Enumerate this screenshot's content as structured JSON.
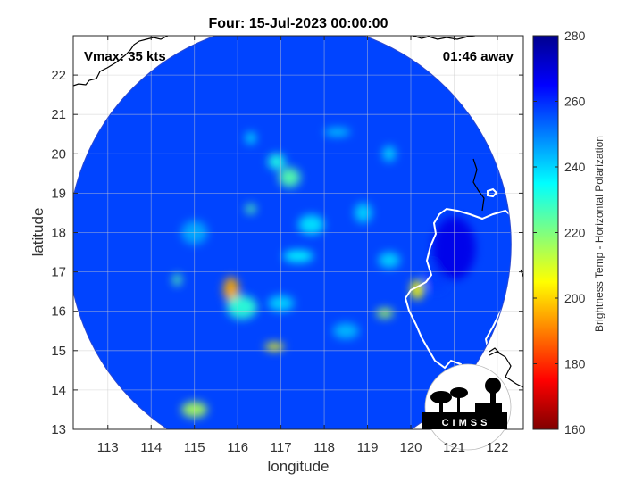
{
  "chart_data": {
    "type": "heatmap",
    "title": "Four: 15-Jul-2023 00:00:00",
    "xlabel": "longitude",
    "ylabel": "latitude",
    "xlim": [
      112.2,
      122.6
    ],
    "ylim": [
      13,
      23
    ],
    "xticks": [
      "113",
      "114",
      "115",
      "116",
      "117",
      "118",
      "119",
      "120",
      "121",
      "122"
    ],
    "yticks": [
      "13",
      "14",
      "15",
      "16",
      "17",
      "18",
      "19",
      "20",
      "21",
      "22"
    ],
    "grid": true,
    "annotations": {
      "left": "Vmax: 35 kts",
      "right": "01:46 away"
    },
    "colorbar": {
      "label": "Brightness Temp - Horizontal Polarization",
      "range": [
        160,
        280
      ],
      "ticks": [
        "160",
        "180",
        "200",
        "220",
        "240",
        "260",
        "280"
      ],
      "colormap": "jet"
    },
    "swath": {
      "center_lon": 117.2,
      "center_lat": 17.7,
      "background_value": 257
    },
    "features": [
      {
        "lon": 115.85,
        "lat": 16.55,
        "value": 195,
        "rx": 0.18,
        "ry": 0.32
      },
      {
        "lon": 116.1,
        "lat": 16.1,
        "value": 230,
        "rx": 0.35,
        "ry": 0.3
      },
      {
        "lon": 120.15,
        "lat": 16.55,
        "value": 205,
        "rx": 0.15,
        "ry": 0.25
      },
      {
        "lon": 119.4,
        "lat": 15.95,
        "value": 215,
        "rx": 0.2,
        "ry": 0.12
      },
      {
        "lon": 116.85,
        "lat": 15.1,
        "value": 205,
        "rx": 0.22,
        "ry": 0.1
      },
      {
        "lon": 115.0,
        "lat": 13.5,
        "value": 215,
        "rx": 0.3,
        "ry": 0.2
      },
      {
        "lon": 116.3,
        "lat": 18.6,
        "value": 225,
        "rx": 0.12,
        "ry": 0.12
      },
      {
        "lon": 117.2,
        "lat": 19.4,
        "value": 225,
        "rx": 0.25,
        "ry": 0.25
      },
      {
        "lon": 116.9,
        "lat": 19.8,
        "value": 232,
        "rx": 0.2,
        "ry": 0.2
      },
      {
        "lon": 114.6,
        "lat": 16.8,
        "value": 225,
        "rx": 0.1,
        "ry": 0.15
      },
      {
        "lon": 117.7,
        "lat": 18.2,
        "value": 238,
        "rx": 0.3,
        "ry": 0.25
      },
      {
        "lon": 119.5,
        "lat": 17.3,
        "value": 240,
        "rx": 0.25,
        "ry": 0.2
      },
      {
        "lon": 118.9,
        "lat": 18.5,
        "value": 240,
        "rx": 0.2,
        "ry": 0.25
      },
      {
        "lon": 116.3,
        "lat": 20.4,
        "value": 238,
        "rx": 0.12,
        "ry": 0.15
      },
      {
        "lon": 118.3,
        "lat": 20.55,
        "value": 240,
        "rx": 0.3,
        "ry": 0.1
      },
      {
        "lon": 119.5,
        "lat": 20.0,
        "value": 240,
        "rx": 0.15,
        "ry": 0.2
      },
      {
        "lon": 117.4,
        "lat": 17.4,
        "value": 235,
        "rx": 0.35,
        "ry": 0.15
      },
      {
        "lon": 115.0,
        "lat": 18.0,
        "value": 245,
        "rx": 0.3,
        "ry": 0.3
      },
      {
        "lon": 117.0,
        "lat": 16.2,
        "value": 240,
        "rx": 0.3,
        "ry": 0.2
      },
      {
        "lon": 118.5,
        "lat": 15.5,
        "value": 243,
        "rx": 0.3,
        "ry": 0.2
      },
      {
        "lon": 120.6,
        "lat": 16.9,
        "value": 258,
        "rx": 0.25,
        "ry": 0.4
      },
      {
        "lon": 121.0,
        "lat": 17.6,
        "value": 268,
        "rx": 0.5,
        "ry": 0.8
      }
    ]
  }
}
